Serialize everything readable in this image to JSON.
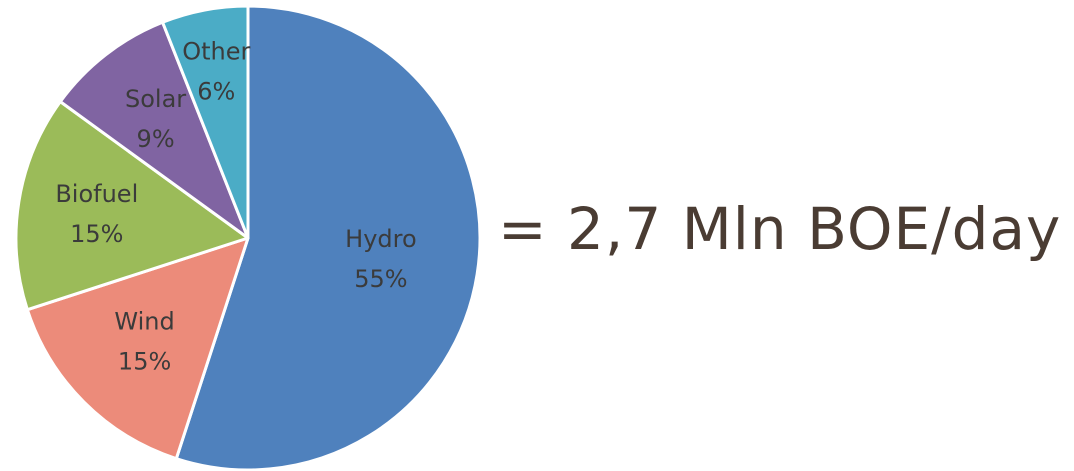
{
  "chart_data": {
    "type": "pie",
    "title": "",
    "slices": [
      {
        "label": "Hydro",
        "value": 55,
        "value_label": "55%",
        "color": "#4f81bd"
      },
      {
        "label": "Wind",
        "value": 15,
        "value_label": "15%",
        "color": "#ec8b7a"
      },
      {
        "label": "Biofuel",
        "value": 15,
        "value_label": "15%",
        "color": "#9bbb59"
      },
      {
        "label": "Solar",
        "value": 9,
        "value_label": "9%",
        "color": "#8064a2"
      },
      {
        "label": "Other",
        "value": 6,
        "value_label": "6%",
        "color": "#4bacc6"
      }
    ],
    "direction": "clockwise",
    "start": "12 o'clock",
    "slice_border_color": "#ffffff"
  },
  "caption": {
    "text": "= 2,7 Mln BOE/day",
    "color": "#4a3c33"
  }
}
